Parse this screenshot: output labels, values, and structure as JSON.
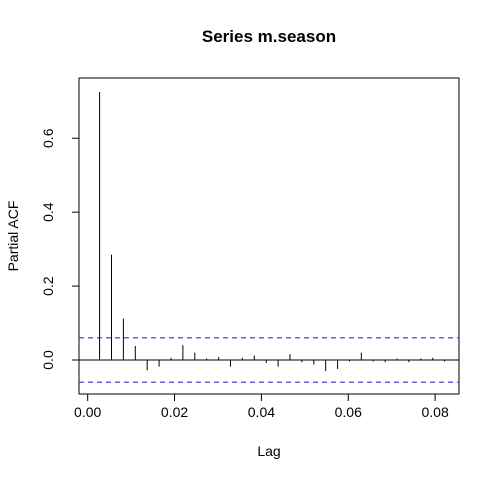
{
  "chart_data": {
    "type": "bar",
    "title": "Series  m.season",
    "xlabel": "Lag",
    "ylabel": "Partial ACF",
    "xlim": [
      -0.002,
      0.0855
    ],
    "ylim": [
      -0.092,
      0.763
    ],
    "x_ticks": [
      {
        "value": 0.0,
        "label": "0.00"
      },
      {
        "value": 0.02,
        "label": "0.02"
      },
      {
        "value": 0.04,
        "label": "0.04"
      },
      {
        "value": 0.06,
        "label": "0.06"
      },
      {
        "value": 0.08,
        "label": "0.08"
      }
    ],
    "y_ticks": [
      {
        "value": 0.0,
        "label": "0.0"
      },
      {
        "value": 0.2,
        "label": "0.2"
      },
      {
        "value": 0.4,
        "label": "0.4"
      },
      {
        "value": 0.6,
        "label": "0.6"
      }
    ],
    "confidence_bound": 0.06,
    "confidence_color": "#3333cc",
    "bar_color": "#000000",
    "lags": [
      0.00274,
      0.00548,
      0.00822,
      0.01096,
      0.0137,
      0.01644,
      0.01918,
      0.02192,
      0.02466,
      0.0274,
      0.03014,
      0.03288,
      0.03562,
      0.03836,
      0.0411,
      0.04384,
      0.04658,
      0.04932,
      0.05206,
      0.0548,
      0.05754,
      0.06027,
      0.06301,
      0.06575,
      0.06849,
      0.07123,
      0.07397,
      0.07671,
      0.07945,
      0.08219
    ],
    "values": [
      0.725,
      0.285,
      0.112,
      0.038,
      -0.028,
      -0.018,
      0.006,
      0.04,
      0.02,
      0.004,
      0.008,
      -0.018,
      0.006,
      0.012,
      -0.008,
      -0.018,
      0.016,
      -0.006,
      -0.012,
      -0.03,
      -0.024,
      -0.004,
      0.02,
      -0.004,
      -0.006,
      0.004,
      -0.006,
      0.004,
      0.006,
      -0.004
    ]
  }
}
